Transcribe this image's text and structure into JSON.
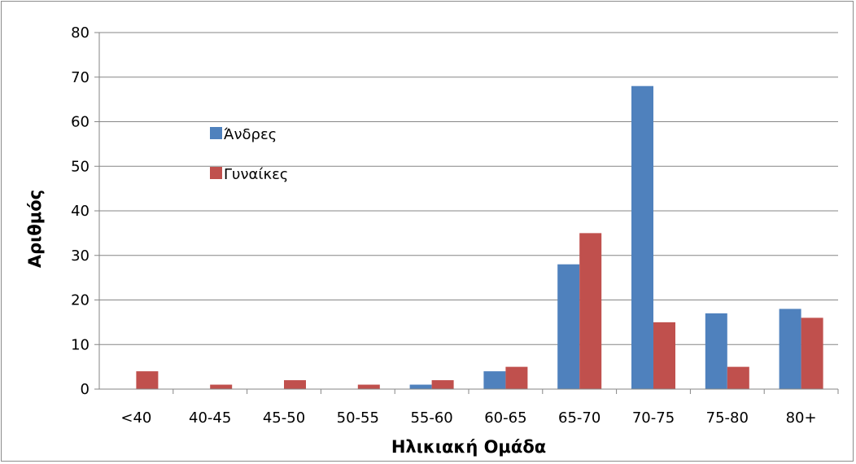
{
  "chart_data": {
    "type": "bar",
    "title": "",
    "xlabel": "Ηλικιακή Ομάδα",
    "ylabel": "Αριθμός",
    "categories": [
      "<40",
      "40-45",
      "45-50",
      "50-55",
      "55-60",
      "60-65",
      "65-70",
      "70-75",
      "75-80",
      "80+"
    ],
    "series": [
      {
        "name": "Άνδρες",
        "color": "#4f81bd",
        "values": [
          0,
          0,
          0,
          0,
          1,
          4,
          28,
          68,
          17,
          18
        ]
      },
      {
        "name": "Γυναίκες",
        "color": "#c0504d",
        "values": [
          4,
          1,
          2,
          1,
          2,
          5,
          35,
          15,
          5,
          16
        ]
      }
    ],
    "ylim": [
      0,
      80
    ],
    "yticks": [
      0,
      10,
      20,
      30,
      40,
      50,
      60,
      70,
      80
    ],
    "grid": true,
    "legend": "inside upper-left"
  }
}
